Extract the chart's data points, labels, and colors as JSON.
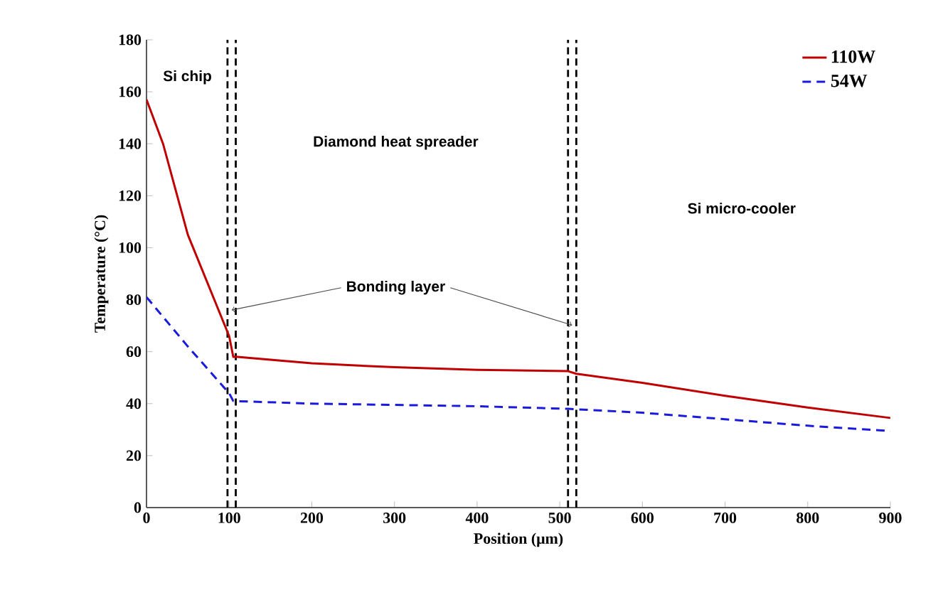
{
  "chart_data": {
    "type": "line",
    "xlabel": "Position (μm)",
    "ylabel": "Temperature (°C)",
    "xlim": [
      0,
      900
    ],
    "ylim": [
      0,
      180
    ],
    "xticks": [
      0,
      100,
      200,
      300,
      400,
      500,
      600,
      700,
      800,
      900
    ],
    "yticks": [
      0,
      20,
      40,
      60,
      80,
      100,
      120,
      140,
      160,
      180
    ],
    "grid": false,
    "legend": "top right",
    "series": [
      {
        "name": "110W",
        "color": "#c00000",
        "line_style": "solid",
        "x": [
          0,
          20,
          50,
          100,
          105,
          110,
          200,
          300,
          400,
          510,
          520,
          600,
          700,
          800,
          900
        ],
        "values": [
          157,
          140,
          105,
          66,
          58,
          58,
          55.5,
          54,
          53,
          52.5,
          51.5,
          48,
          43,
          38.5,
          34.5
        ]
      },
      {
        "name": "54W",
        "color": "#1a1adc",
        "line_style": "dashed",
        "x": [
          0,
          50,
          100,
          105,
          200,
          300,
          400,
          510,
          600,
          700,
          800,
          900
        ],
        "values": [
          81,
          62,
          44,
          41,
          40,
          39.5,
          39,
          38,
          36.5,
          34,
          31.5,
          29.5
        ]
      }
    ],
    "ref_lines": [
      {
        "axis": "x",
        "value": 98,
        "color": "#000000",
        "line_style": "dashed"
      },
      {
        "axis": "x",
        "value": 108,
        "color": "#000000",
        "line_style": "dashed"
      },
      {
        "axis": "x",
        "value": 510,
        "color": "#000000",
        "line_style": "dashed"
      },
      {
        "axis": "x",
        "value": 520,
        "color": "#000000",
        "line_style": "dashed"
      }
    ],
    "annotations": [
      "Si chip",
      "Diamond heat spreader",
      "Si micro-cooler",
      {
        "text": "Bonding layer",
        "x": 103,
        "y": 76
      }
    ]
  }
}
